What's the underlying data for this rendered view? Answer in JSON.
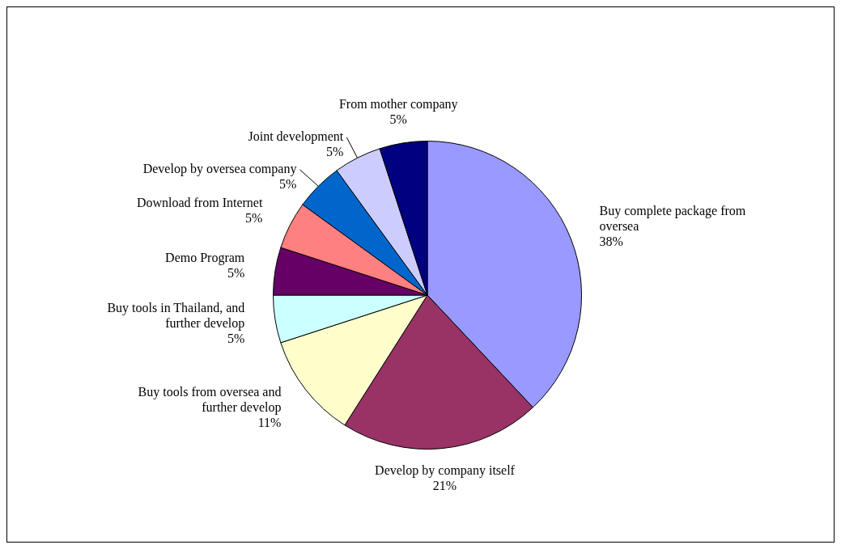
{
  "chart_data": {
    "type": "pie",
    "categories": [
      "Buy complete package from oversea",
      "Develop by company itself",
      "Buy tools from oversea and further develop",
      "Buy tools in Thailand, and further develop",
      "Demo Program",
      "Download from Internet",
      "Develop by oversea company",
      "Joint development",
      "From mother company"
    ],
    "values": [
      38,
      21,
      11,
      5,
      5,
      5,
      5,
      5,
      5
    ],
    "value_labels": [
      "38%",
      "21%",
      "11%",
      "5%",
      "5%",
      "5%",
      "5%",
      "5%",
      "5%"
    ],
    "colors": [
      "#9999ff",
      "#993366",
      "#ffffcc",
      "#ccffff",
      "#660066",
      "#ff8080",
      "#0066cc",
      "#ccccff",
      "#000080"
    ],
    "legend": false
  }
}
